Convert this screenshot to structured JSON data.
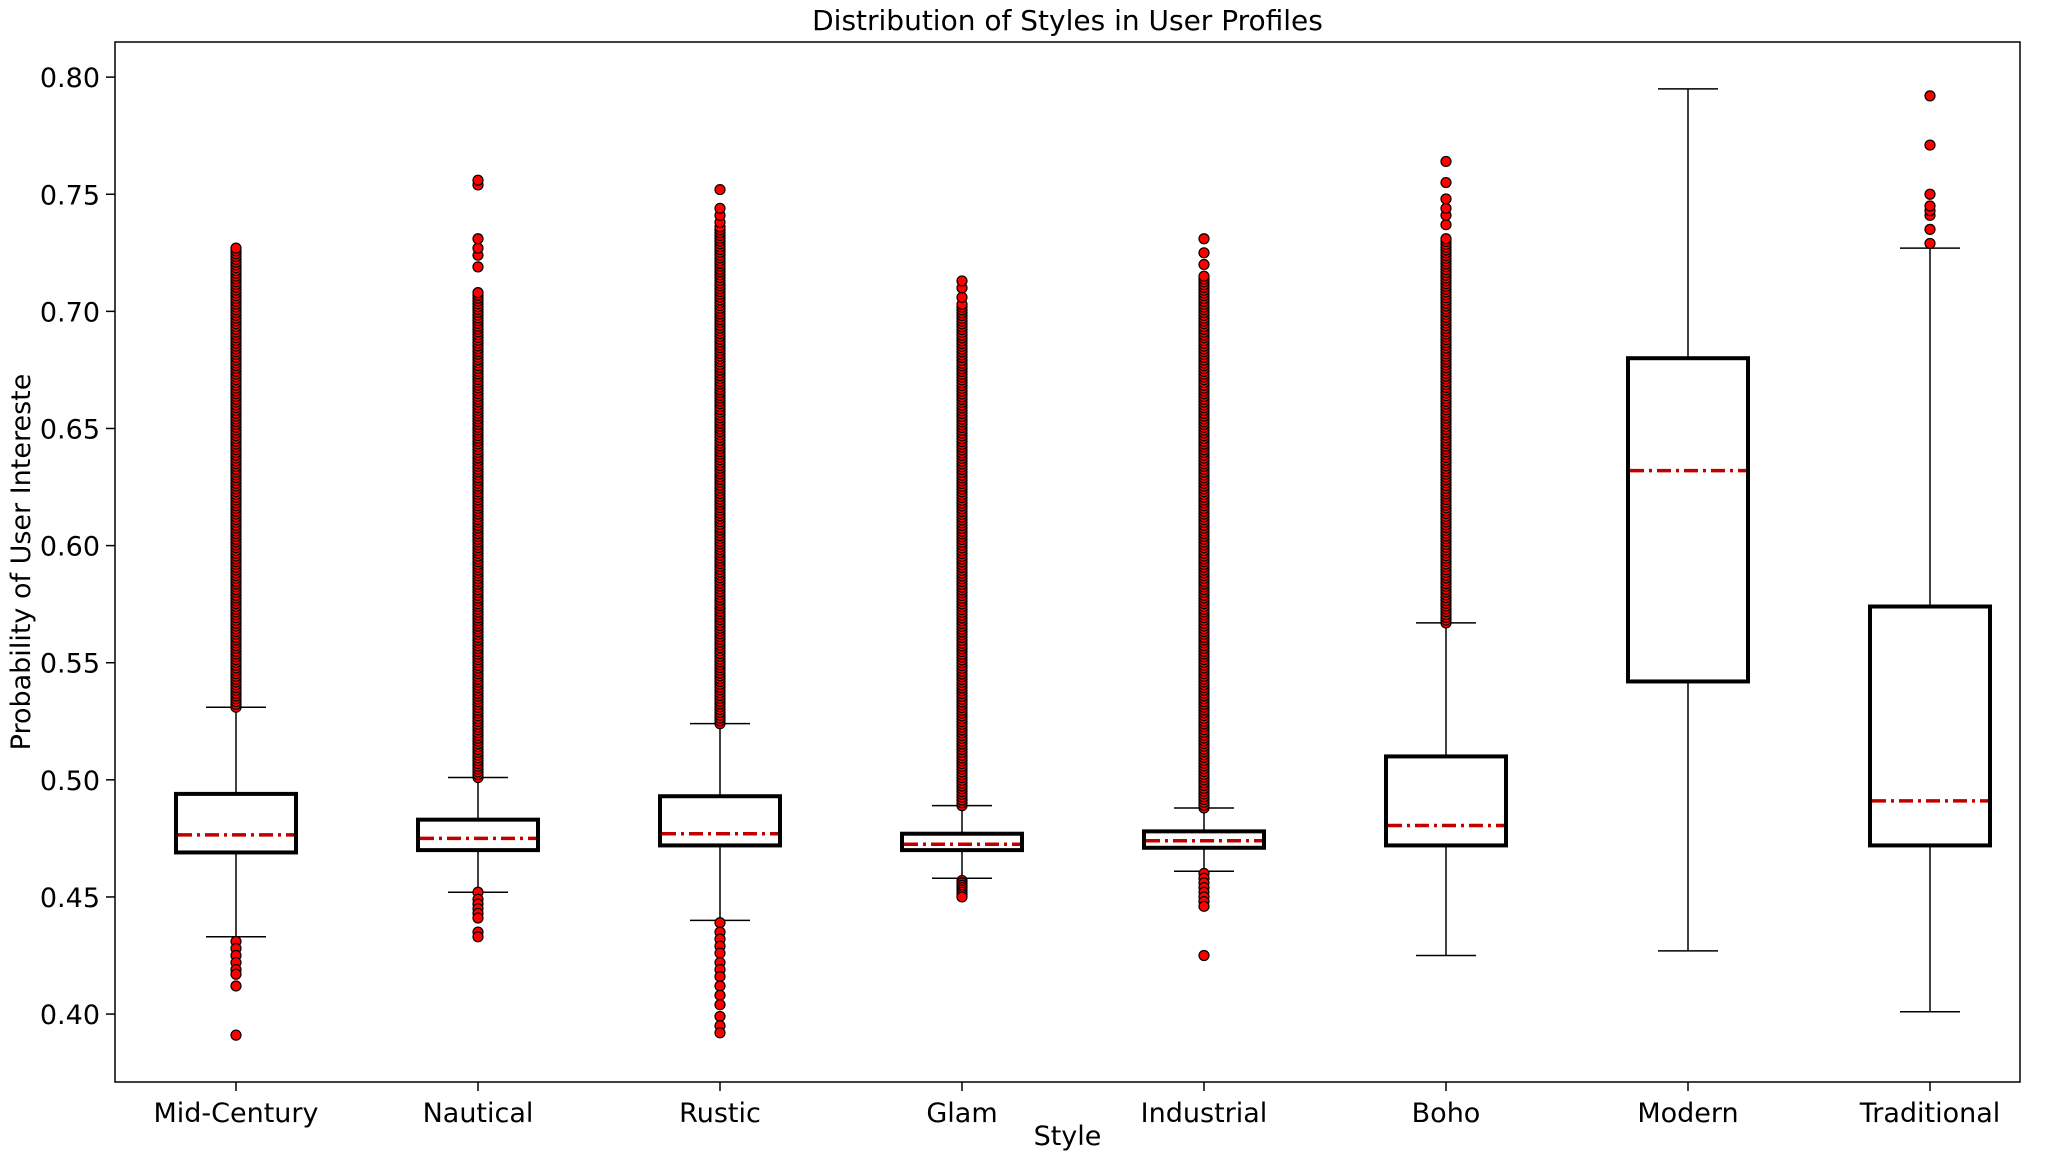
{
  "chart_data": {
    "type": "box",
    "title": "Distribution of Styles in User Profiles",
    "xlabel": "Style",
    "ylabel": "Probability of User Intereste",
    "ylim": [
      0.371,
      0.815
    ],
    "yticks": [
      0.4,
      0.45,
      0.5,
      0.55,
      0.6,
      0.65,
      0.7,
      0.75,
      0.8
    ],
    "ytick_labels": [
      "0.40",
      "0.45",
      "0.50",
      "0.55",
      "0.60",
      "0.65",
      "0.70",
      "0.75",
      "0.80"
    ],
    "grid": false,
    "colors": {
      "box_edge": "#000000",
      "median": "#c00000",
      "outlier_fill": "#ff0000",
      "outlier_edge": "#000000"
    },
    "categories": [
      "Mid-Century",
      "Nautical",
      "Rustic",
      "Glam",
      "Industrial",
      "Boho",
      "Modern",
      "Traditional"
    ],
    "boxes": [
      {
        "label": "Mid-Century",
        "whisker_low": 0.433,
        "q1": 0.469,
        "median": 0.4765,
        "q3": 0.494,
        "whisker_high": 0.531,
        "outliers_high_range": [
          0.531,
          0.727
        ],
        "outliers_low": [
          0.431,
          0.428,
          0.425,
          0.422,
          0.419,
          0.417,
          0.412,
          0.391
        ]
      },
      {
        "label": "Nautical",
        "whisker_low": 0.452,
        "q1": 0.47,
        "median": 0.475,
        "q3": 0.483,
        "whisker_high": 0.501,
        "outliers_high_range": [
          0.501,
          0.708
        ],
        "outliers_high_extra": [
          0.719,
          0.724,
          0.727,
          0.731,
          0.754,
          0.756
        ],
        "outliers_low": [
          0.452,
          0.449,
          0.447,
          0.445,
          0.443,
          0.441,
          0.435,
          0.433
        ]
      },
      {
        "label": "Rustic",
        "whisker_low": 0.44,
        "q1": 0.472,
        "median": 0.477,
        "q3": 0.493,
        "whisker_high": 0.524,
        "outliers_high_range": [
          0.524,
          0.736
        ],
        "outliers_high_extra": [
          0.738,
          0.741,
          0.744,
          0.752
        ],
        "outliers_low": [
          0.439,
          0.435,
          0.432,
          0.429,
          0.426,
          0.422,
          0.419,
          0.416,
          0.412,
          0.408,
          0.404,
          0.399,
          0.395,
          0.392
        ]
      },
      {
        "label": "Glam",
        "whisker_low": 0.458,
        "q1": 0.47,
        "median": 0.4725,
        "q3": 0.477,
        "whisker_high": 0.489,
        "outliers_high_range": [
          0.489,
          0.703
        ],
        "outliers_high_extra": [
          0.706,
          0.71,
          0.713
        ],
        "outliers_low": [
          0.457,
          0.456,
          0.455,
          0.454,
          0.453,
          0.452,
          0.451,
          0.45
        ]
      },
      {
        "label": "Industrial",
        "whisker_low": 0.461,
        "q1": 0.471,
        "median": 0.474,
        "q3": 0.478,
        "whisker_high": 0.488,
        "outliers_high_range": [
          0.488,
          0.715
        ],
        "outliers_high_extra": [
          0.72,
          0.725,
          0.731
        ],
        "outliers_low": [
          0.46,
          0.458,
          0.456,
          0.454,
          0.452,
          0.45,
          0.448,
          0.446,
          0.425
        ]
      },
      {
        "label": "Boho",
        "whisker_low": 0.425,
        "q1": 0.472,
        "median": 0.4805,
        "q3": 0.51,
        "whisker_high": 0.567,
        "outliers_high_range": [
          0.567,
          0.731
        ],
        "outliers_high_extra": [
          0.737,
          0.741,
          0.744,
          0.748,
          0.755,
          0.764
        ],
        "outliers_low": []
      },
      {
        "label": "Modern",
        "whisker_low": 0.427,
        "q1": 0.542,
        "median": 0.632,
        "q3": 0.68,
        "whisker_high": 0.795,
        "outliers_high_range": null,
        "outliers_low": []
      },
      {
        "label": "Traditional",
        "whisker_low": 0.401,
        "q1": 0.472,
        "median": 0.491,
        "q3": 0.574,
        "whisker_high": 0.727,
        "outliers_high_range": null,
        "outliers_high_extra": [
          0.729,
          0.735,
          0.741,
          0.743,
          0.745,
          0.75,
          0.771,
          0.792
        ],
        "outliers_low": []
      }
    ]
  }
}
